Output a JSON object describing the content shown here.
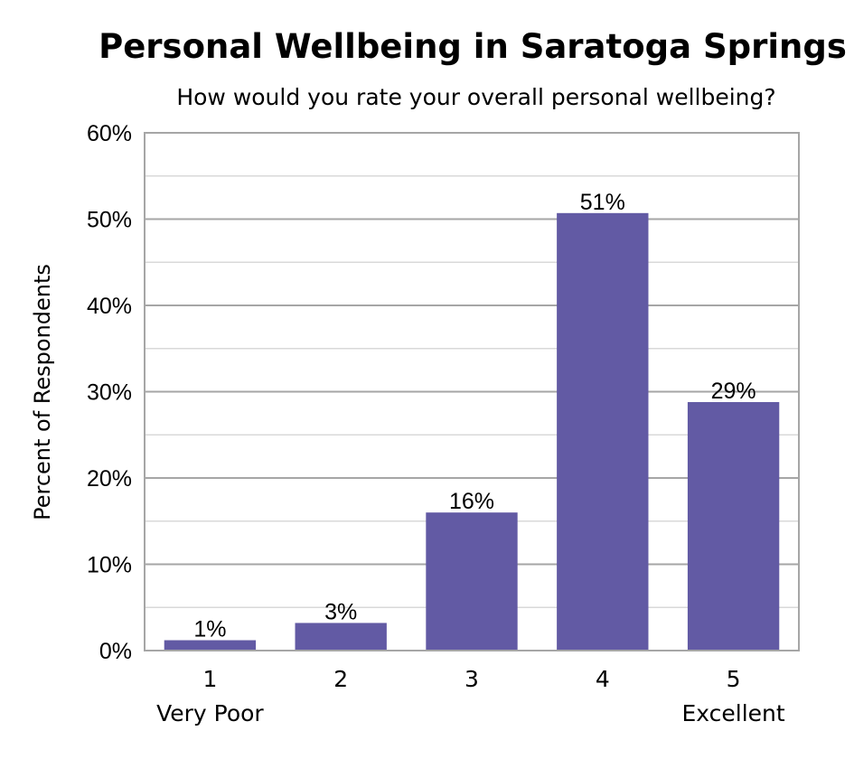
{
  "chart_data": {
    "type": "bar",
    "title": "Personal Wellbeing in Saratoga Springs",
    "subtitle": "How would you rate your overall personal wellbeing?",
    "ylabel": "Percent of Respondents",
    "xlabel": "",
    "categories": [
      "1",
      "2",
      "3",
      "4",
      "5"
    ],
    "category_sublabels": [
      "Very Poor",
      "",
      "",
      "",
      "Excellent"
    ],
    "values": [
      1.2,
      3.2,
      16.0,
      50.7,
      28.8
    ],
    "data_labels": [
      "1%",
      "3%",
      "16%",
      "51%",
      "29%"
    ],
    "ylim": [
      0,
      60
    ],
    "yticks": [
      0,
      10,
      20,
      30,
      40,
      50,
      60
    ],
    "ytick_labels": [
      "0%",
      "10%",
      "20%",
      "30%",
      "40%",
      "50%",
      "60%"
    ],
    "grid": true,
    "legend": "none",
    "bar_color": "#625aa4"
  }
}
